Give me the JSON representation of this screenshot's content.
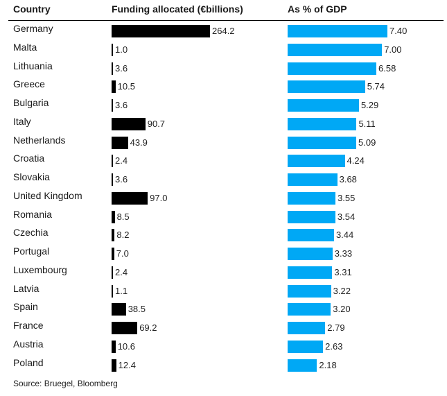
{
  "headers": {
    "country": "Country",
    "funding": "Funding allocated (€billions)",
    "gdp": "As % of GDP"
  },
  "source": "Source: Bruegel, Bloomberg",
  "colors": {
    "funding_bar": "#000000",
    "gdp_bar": "#00a8f5"
  },
  "chart_data": {
    "type": "bar",
    "orientation": "horizontal",
    "categories": [
      "Germany",
      "Malta",
      "Lithuania",
      "Greece",
      "Bulgaria",
      "Italy",
      "Netherlands",
      "Croatia",
      "Slovakia",
      "United Kingdom",
      "Romania",
      "Czechia",
      "Portugal",
      "Luxembourg",
      "Latvia",
      "Spain",
      "France",
      "Austria",
      "Poland"
    ],
    "series": [
      {
        "name": "Funding allocated (€billions)",
        "values": [
          264.2,
          1.0,
          3.6,
          10.5,
          3.6,
          90.7,
          43.9,
          2.4,
          3.6,
          97.0,
          8.5,
          8.2,
          7.0,
          2.4,
          1.1,
          38.5,
          69.2,
          10.6,
          12.4
        ],
        "labels": [
          "264.2",
          "1.0",
          "3.6",
          "10.5",
          "3.6",
          "90.7",
          "43.9",
          "2.4",
          "3.6",
          "97.0",
          "8.5",
          "8.2",
          "7.0",
          "2.4",
          "1.1",
          "38.5",
          "69.2",
          "10.6",
          "12.4"
        ]
      },
      {
        "name": "As % of GDP",
        "values": [
          7.4,
          7.0,
          6.58,
          5.74,
          5.29,
          5.11,
          5.09,
          4.24,
          3.68,
          3.55,
          3.54,
          3.44,
          3.33,
          3.31,
          3.22,
          3.2,
          2.79,
          2.63,
          2.18
        ],
        "labels": [
          "7.40",
          "7.00",
          "6.58",
          "5.74",
          "5.29",
          "5.11",
          "5.09",
          "4.24",
          "3.68",
          "3.55",
          "3.54",
          "3.44",
          "3.33",
          "3.31",
          "3.22",
          "3.20",
          "2.79",
          "2.63",
          "2.18"
        ]
      }
    ],
    "xlim": [
      [
        0,
        264.2
      ],
      [
        0,
        7.4
      ]
    ],
    "grid": false,
    "legend": "none"
  }
}
